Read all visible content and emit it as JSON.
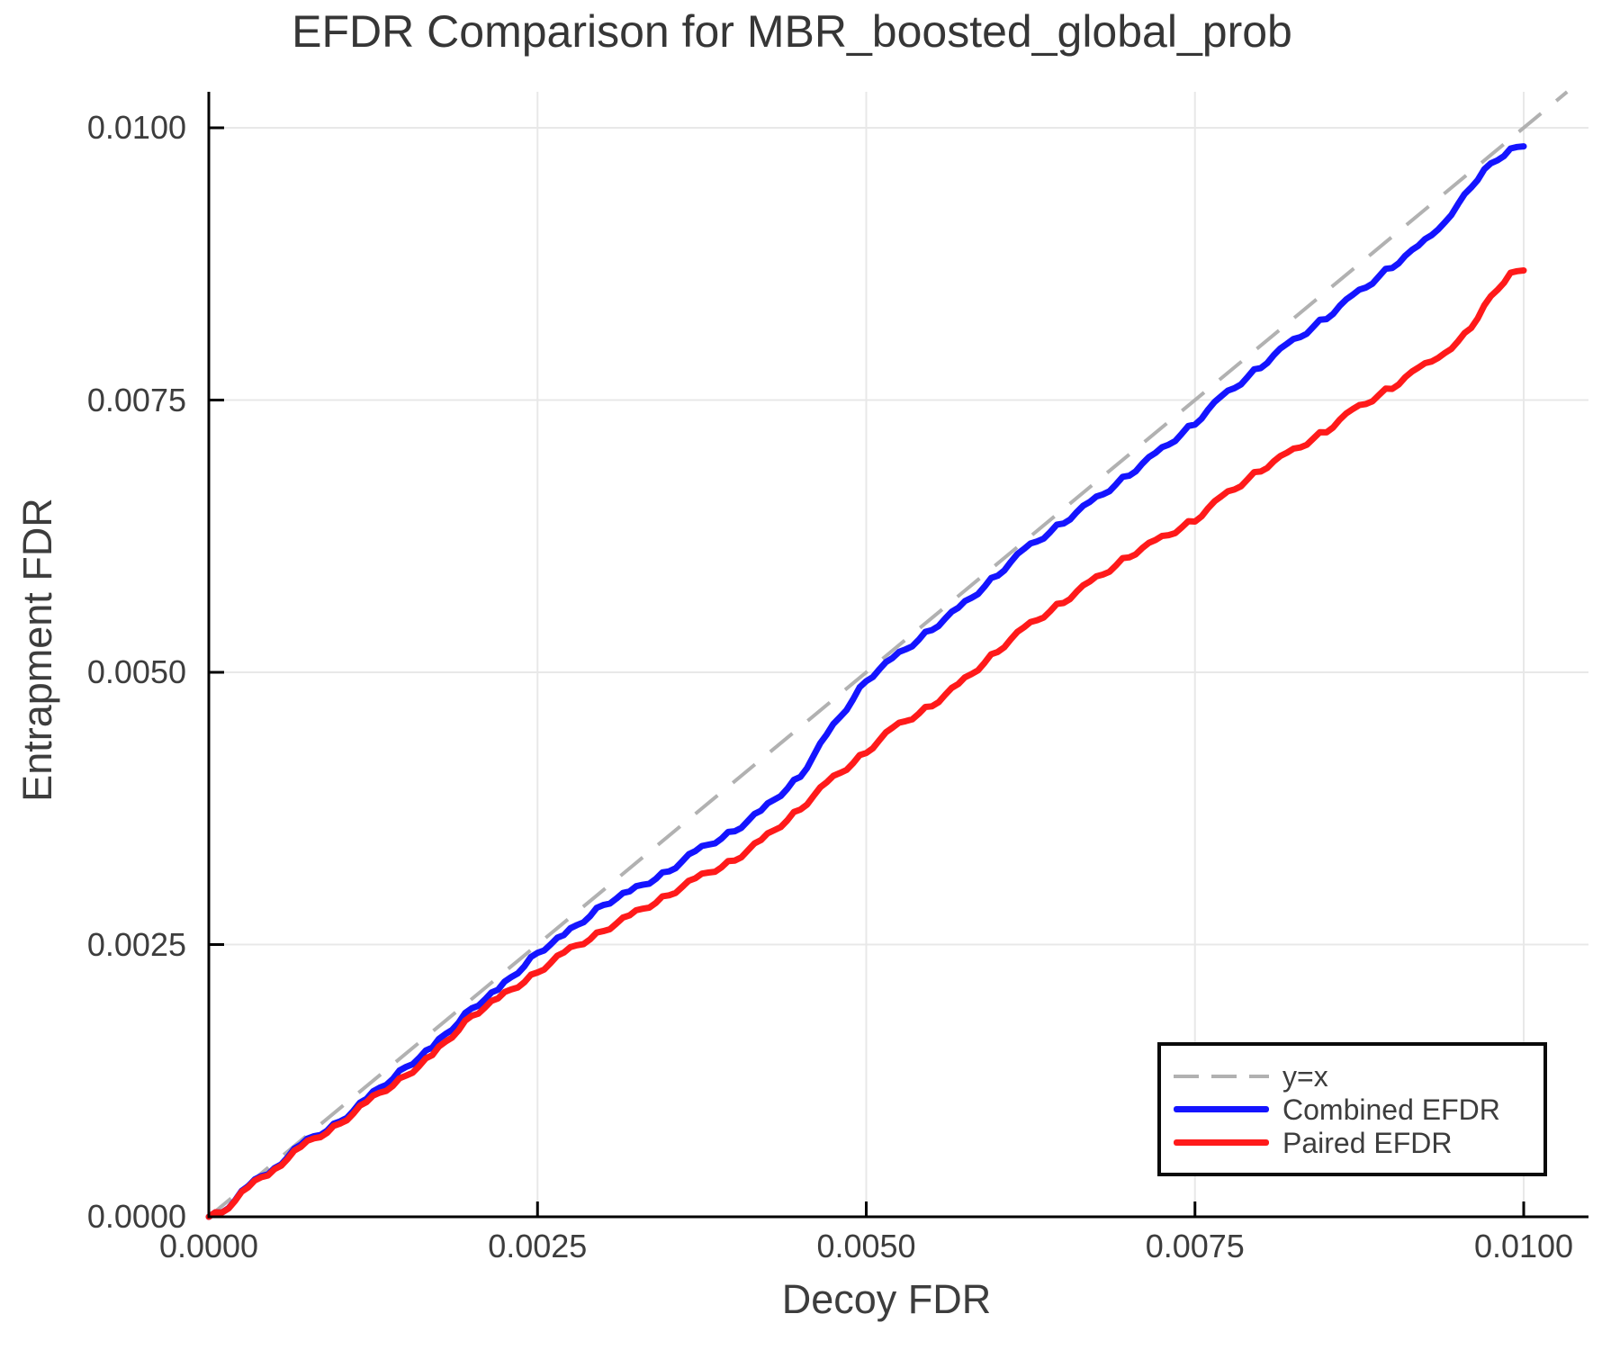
{
  "chart": {
    "title": "EFDR Comparison for MBR_boosted_global_prob",
    "xlabel": "Decoy FDR",
    "ylabel": "Entrapment FDR"
  },
  "legend": {
    "position": "bottom-right",
    "items": [
      {
        "label": "y=x",
        "color": "#b1b1b1",
        "style": "dashed"
      },
      {
        "label": "Combined EFDR",
        "color": "#1414ff",
        "style": "solid"
      },
      {
        "label": "Paired EFDR",
        "color": "#ff1a1a",
        "style": "solid"
      }
    ]
  },
  "chart_data": {
    "type": "line",
    "title": "EFDR Comparison for MBR_boosted_global_prob",
    "xlabel": "Decoy FDR",
    "ylabel": "Entrapment FDR",
    "xlim": [
      0.0,
      0.0105
    ],
    "ylim": [
      0.0,
      0.01033
    ],
    "grid": true,
    "legend_position": "bottom-right",
    "x_ticks": [
      0.0,
      0.0025,
      0.005,
      0.0075,
      0.01
    ],
    "y_ticks": [
      0.0,
      0.0025,
      0.005,
      0.0075,
      0.01
    ],
    "x_tick_labels": [
      "0.0000",
      "0.0025",
      "0.0050",
      "0.0075",
      "0.0100"
    ],
    "y_tick_labels": [
      "0.0000",
      "0.0025",
      "0.0050",
      "0.0075",
      "0.0100"
    ],
    "colors": {
      "grid": "#e8e8e8",
      "spine": "#000000",
      "text": "#3d3d3d"
    },
    "series": [
      {
        "name": "y=x",
        "color": "#b1b1b1",
        "style": "dashed",
        "width": 4,
        "points": [
          [
            0.0,
            0.0
          ],
          [
            0.01033,
            0.01033
          ]
        ]
      },
      {
        "name": "Combined EFDR",
        "color": "#1414ff",
        "style": "solid",
        "width": 7,
        "points": [
          [
            0.0,
            0.0
          ],
          [
            0.0001,
            4e-05
          ],
          [
            0.0003,
            0.00028
          ],
          [
            0.0005,
            0.00045
          ],
          [
            0.0007,
            0.00066
          ],
          [
            0.001,
            0.00088
          ],
          [
            0.0012,
            0.00108
          ],
          [
            0.0015,
            0.00138
          ],
          [
            0.0017,
            0.00155
          ],
          [
            0.002,
            0.00192
          ],
          [
            0.0022,
            0.00208
          ],
          [
            0.0025,
            0.00243
          ],
          [
            0.0027,
            0.00258
          ],
          [
            0.003,
            0.00287
          ],
          [
            0.0032,
            0.00298
          ],
          [
            0.0035,
            0.00318
          ],
          [
            0.0037,
            0.00335
          ],
          [
            0.004,
            0.00355
          ],
          [
            0.0042,
            0.00372
          ],
          [
            0.0045,
            0.00405
          ],
          [
            0.0047,
            0.00442
          ],
          [
            0.005,
            0.00493
          ],
          [
            0.0052,
            0.00512
          ],
          [
            0.0055,
            0.0054
          ],
          [
            0.0057,
            0.00558
          ],
          [
            0.006,
            0.0059
          ],
          [
            0.0062,
            0.00612
          ],
          [
            0.0065,
            0.00638
          ],
          [
            0.0067,
            0.00655
          ],
          [
            0.007,
            0.00682
          ],
          [
            0.0072,
            0.007
          ],
          [
            0.0075,
            0.00729
          ],
          [
            0.0077,
            0.00752
          ],
          [
            0.008,
            0.00781
          ],
          [
            0.0082,
            0.008
          ],
          [
            0.0085,
            0.00826
          ],
          [
            0.0087,
            0.00845
          ],
          [
            0.009,
            0.00873
          ],
          [
            0.0092,
            0.0089
          ],
          [
            0.0094,
            0.00915
          ],
          [
            0.0095,
            0.00928
          ],
          [
            0.0096,
            0.00947
          ],
          [
            0.0097,
            0.0096
          ],
          [
            0.0098,
            0.00972
          ],
          [
            0.0099,
            0.00979
          ],
          [
            0.01,
            0.00983
          ]
        ]
      },
      {
        "name": "Paired EFDR",
        "color": "#ff1a1a",
        "style": "solid",
        "width": 7,
        "points": [
          [
            0.0,
            0.0
          ],
          [
            0.0001,
            4e-05
          ],
          [
            0.0003,
            0.00027
          ],
          [
            0.0005,
            0.00044
          ],
          [
            0.0007,
            0.00064
          ],
          [
            0.001,
            0.00086
          ],
          [
            0.0012,
            0.00105
          ],
          [
            0.0015,
            0.0013
          ],
          [
            0.0017,
            0.00148
          ],
          [
            0.002,
            0.00185
          ],
          [
            0.0022,
            0.002
          ],
          [
            0.0025,
            0.00225
          ],
          [
            0.0027,
            0.00242
          ],
          [
            0.003,
            0.00263
          ],
          [
            0.0032,
            0.00276
          ],
          [
            0.0035,
            0.00296
          ],
          [
            0.0037,
            0.0031
          ],
          [
            0.004,
            0.00328
          ],
          [
            0.0042,
            0.00345
          ],
          [
            0.0045,
            0.00375
          ],
          [
            0.0047,
            0.00398
          ],
          [
            0.005,
            0.00427
          ],
          [
            0.0052,
            0.00448
          ],
          [
            0.0055,
            0.0047
          ],
          [
            0.0057,
            0.00488
          ],
          [
            0.006,
            0.0052
          ],
          [
            0.0062,
            0.0054
          ],
          [
            0.0065,
            0.00565
          ],
          [
            0.0067,
            0.00582
          ],
          [
            0.007,
            0.00607
          ],
          [
            0.0072,
            0.0062
          ],
          [
            0.0075,
            0.0064
          ],
          [
            0.0077,
            0.0066
          ],
          [
            0.008,
            0.00686
          ],
          [
            0.0082,
            0.007
          ],
          [
            0.0085,
            0.00722
          ],
          [
            0.0087,
            0.0074
          ],
          [
            0.009,
            0.00762
          ],
          [
            0.0092,
            0.00778
          ],
          [
            0.0094,
            0.00795
          ],
          [
            0.0095,
            0.00802
          ],
          [
            0.0096,
            0.00818
          ],
          [
            0.0097,
            0.00835
          ],
          [
            0.0098,
            0.00853
          ],
          [
            0.0099,
            0.00865
          ],
          [
            0.01,
            0.00869
          ]
        ]
      }
    ]
  }
}
